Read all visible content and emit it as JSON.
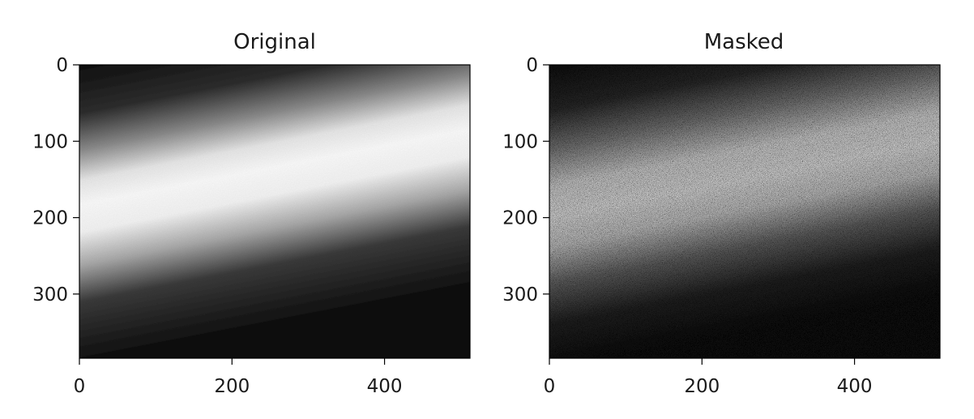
{
  "chart_data": [
    {
      "type": "heatmap",
      "title": "Original",
      "colormap": "gray",
      "image_width": 512,
      "image_height": 384,
      "xlim": [
        0,
        512
      ],
      "ylim": [
        384,
        0
      ],
      "xticks": [
        0,
        200,
        400
      ],
      "yticks": [
        0,
        100,
        200,
        300
      ],
      "xtick_labels": [
        "0",
        "200",
        "400"
      ],
      "ytick_labels": [
        "0",
        "100",
        "200",
        "300"
      ],
      "band": {
        "center_y_at_x0": 200,
        "center_y_at_x512": 120,
        "width_sigma": 65
      },
      "noise": "low"
    },
    {
      "type": "heatmap",
      "title": "Masked",
      "colormap": "gray",
      "image_width": 512,
      "image_height": 384,
      "xlim": [
        0,
        512
      ],
      "ylim": [
        384,
        0
      ],
      "xticks": [
        0,
        200,
        400
      ],
      "yticks": [
        0,
        100,
        200,
        300
      ],
      "xtick_labels": [
        "0",
        "200",
        "400"
      ],
      "ytick_labels": [
        "0",
        "100",
        "200",
        "300"
      ],
      "band": {
        "center_y_at_x0": 200,
        "center_y_at_x512": 120,
        "width_sigma": 75
      },
      "noise": "heavy"
    }
  ]
}
